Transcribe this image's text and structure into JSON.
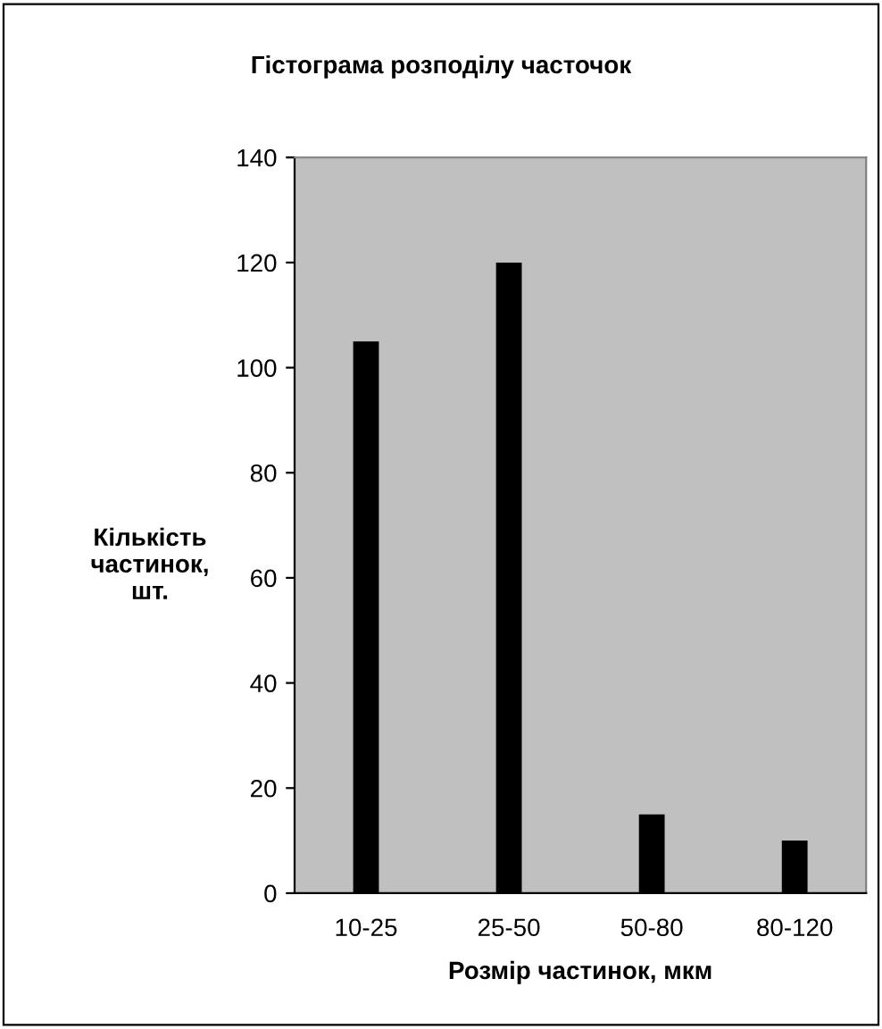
{
  "chart_data": {
    "type": "bar",
    "title": "Гістограма розподілу часточок",
    "xlabel": "Розмір частинок, мкм",
    "ylabel": "Кількість\nчастинок,\nшт.",
    "categories": [
      "10-25",
      "25-50",
      "50-80",
      "80-120"
    ],
    "values": [
      105,
      120,
      15,
      10
    ],
    "color": "#000000",
    "ylim": [
      0,
      140
    ],
    "yticks": [
      0,
      20,
      40,
      60,
      80,
      100,
      120,
      140
    ],
    "grid": false
  }
}
